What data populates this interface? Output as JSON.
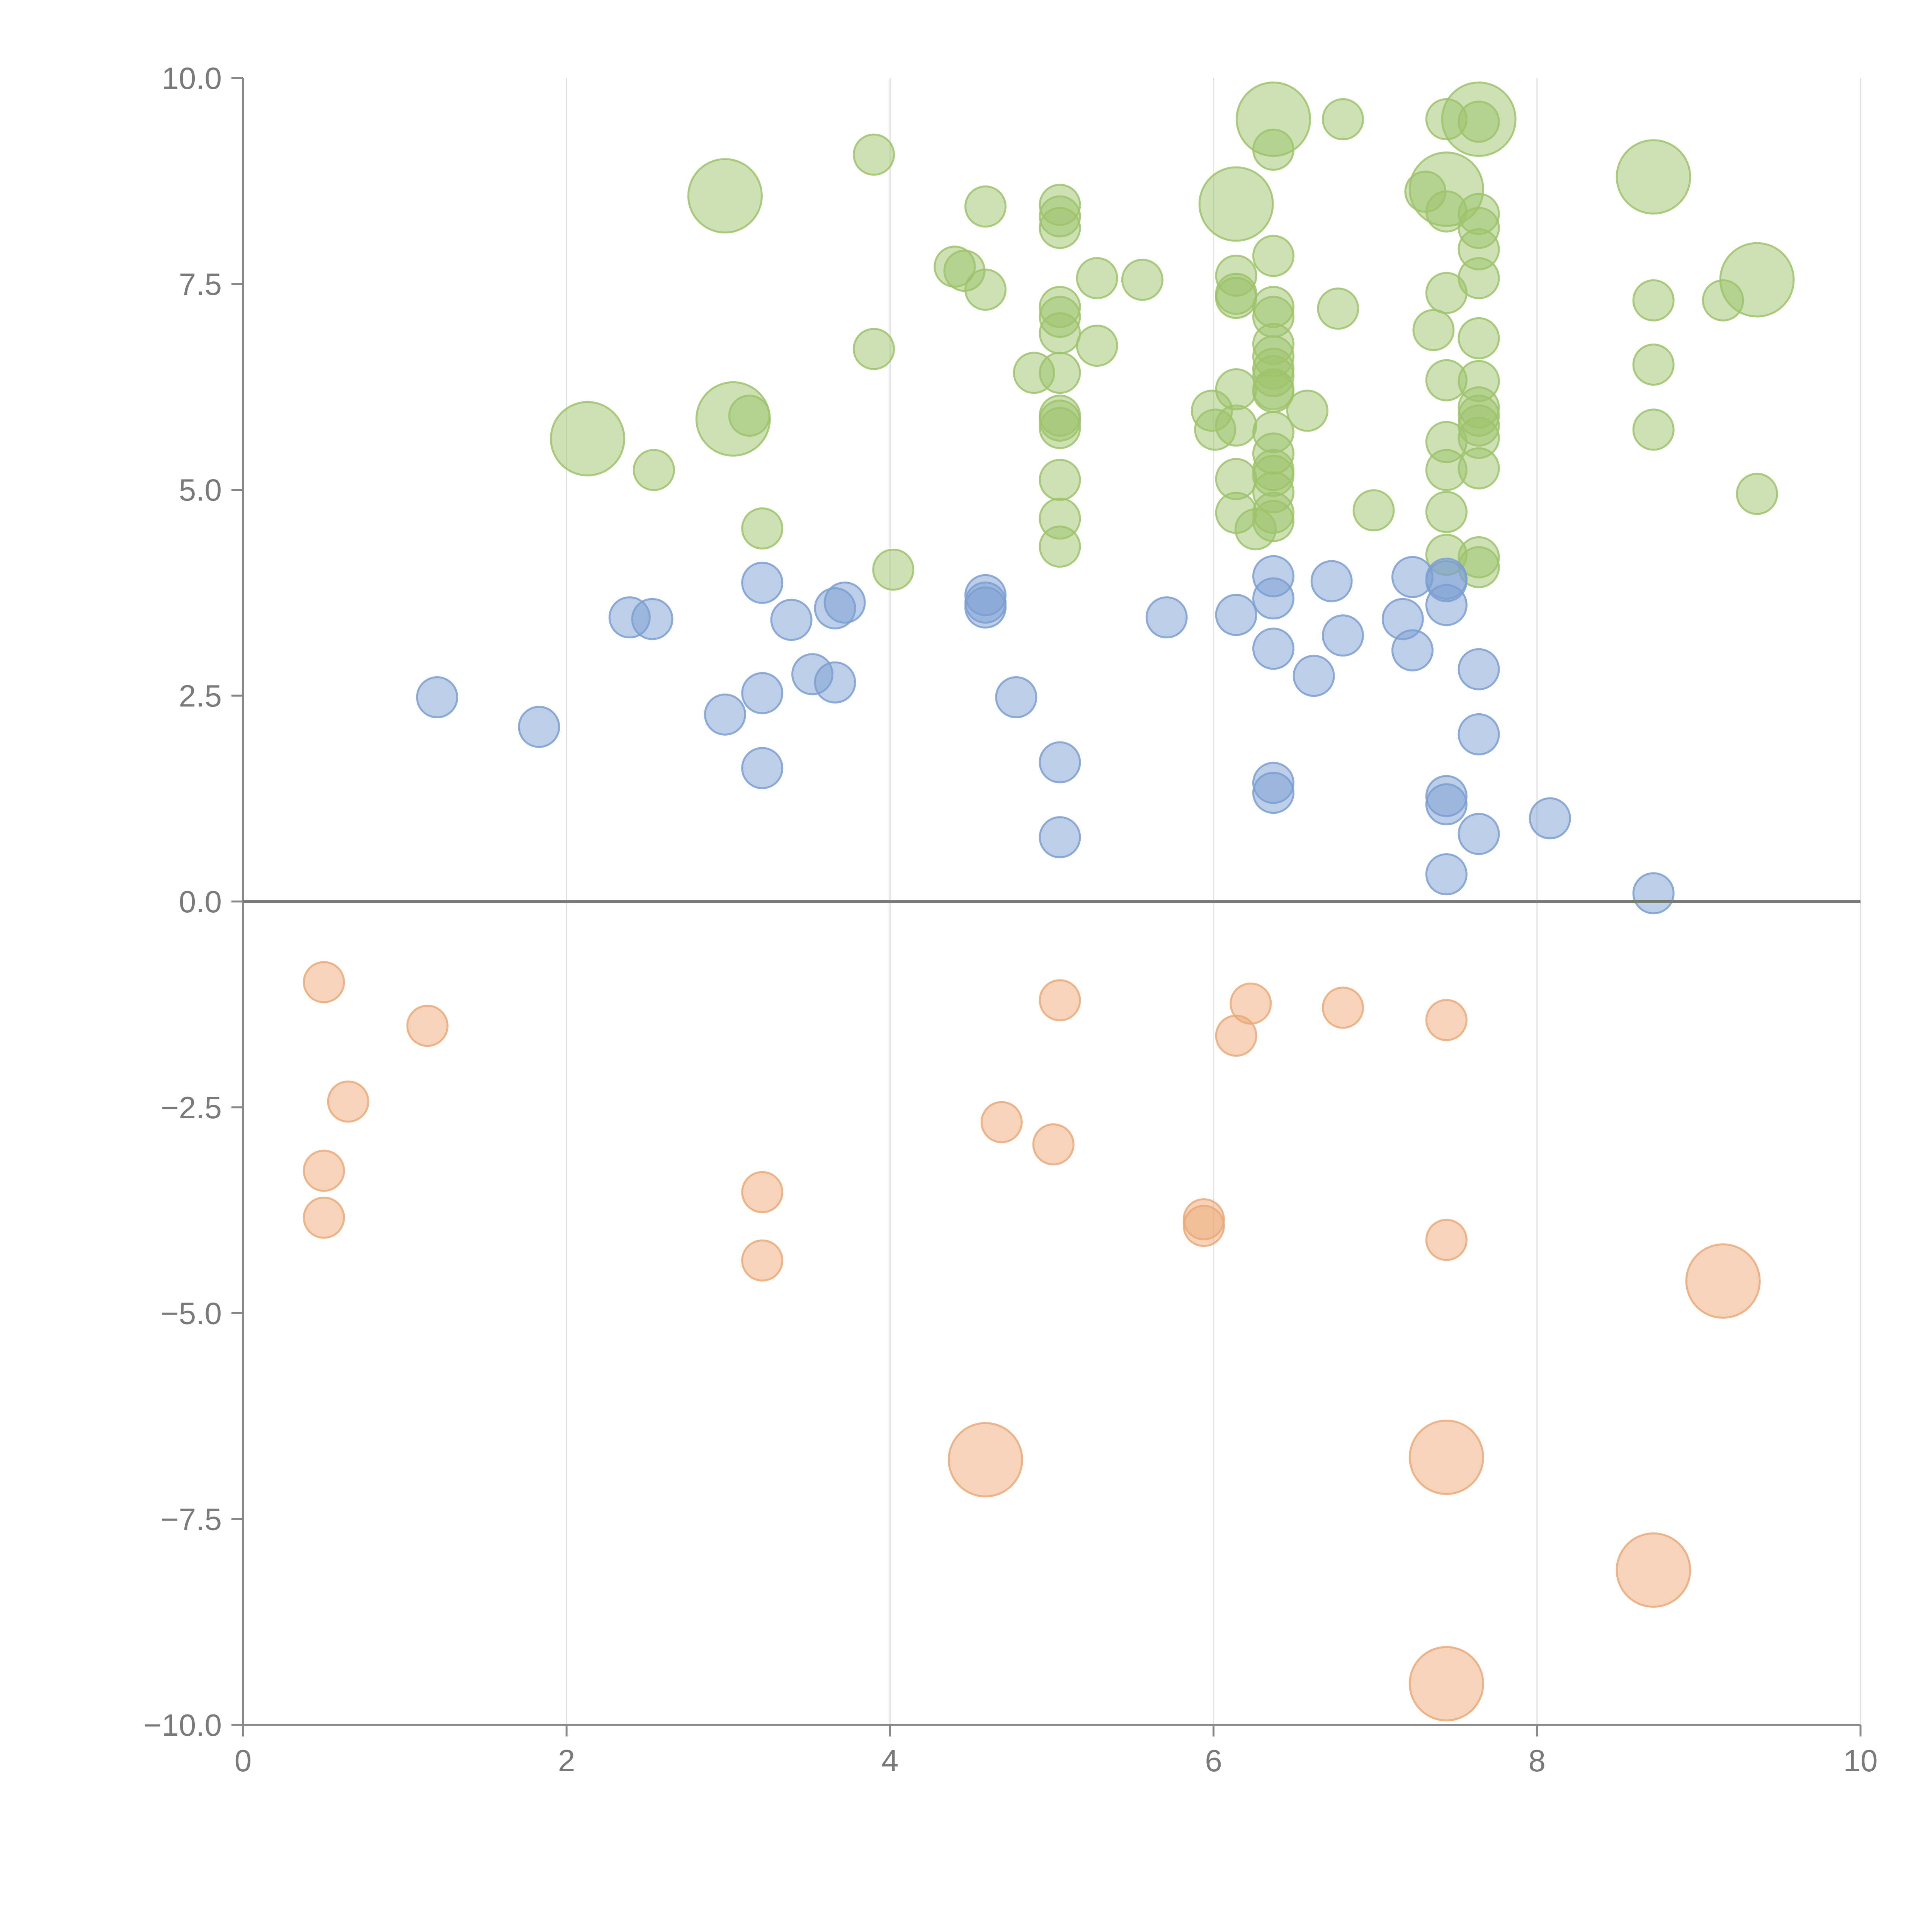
{
  "chart_data": {
    "type": "scatter",
    "title": "",
    "xlabel": "",
    "ylabel": "",
    "xlim": [
      0,
      10
    ],
    "ylim": [
      -10,
      10
    ],
    "grid": "vertical",
    "x_ticks": [
      0,
      2,
      4,
      6,
      8,
      10
    ],
    "x_tick_labels": [
      "0",
      "2",
      "4",
      "6",
      "8",
      "10"
    ],
    "y_ticks": [
      10,
      7.5,
      5,
      2.5,
      0,
      -2.5,
      -5,
      -7.5,
      -10
    ],
    "y_tick_labels": [
      "10.0",
      "7.5",
      "5.0",
      "2.5",
      "0.0",
      "−2.5",
      "−5.0",
      "−7.5",
      "−10.0"
    ],
    "series": [
      {
        "name": "green",
        "color": "#9dc36b",
        "points": [
          [
            2.98,
            8.57,
            2
          ],
          [
            2.13,
            5.62,
            2
          ],
          [
            3.03,
            5.86,
            2
          ],
          [
            6.14,
            8.47,
            2
          ],
          [
            6.37,
            9.5,
            2
          ],
          [
            7.64,
            9.5,
            2
          ],
          [
            7.44,
            8.65,
            2
          ],
          [
            8.72,
            8.8,
            2
          ],
          [
            9.36,
            7.55,
            2
          ],
          [
            3.9,
            9.07,
            1
          ],
          [
            3.13,
            5.9,
            1
          ],
          [
            2.54,
            5.24,
            1
          ],
          [
            3.21,
            4.53,
            1
          ],
          [
            3.9,
            6.71,
            1
          ],
          [
            4.02,
            4.03,
            1
          ],
          [
            4.4,
            7.71,
            1
          ],
          [
            4.46,
            7.66,
            1
          ],
          [
            4.59,
            8.44,
            1
          ],
          [
            4.59,
            7.43,
            1
          ],
          [
            4.89,
            6.42,
            1
          ],
          [
            5.05,
            8.46,
            1
          ],
          [
            5.05,
            8.32,
            1
          ],
          [
            5.05,
            8.18,
            1
          ],
          [
            5.05,
            7.22,
            1
          ],
          [
            5.05,
            7.1,
            1
          ],
          [
            5.05,
            6.9,
            1
          ],
          [
            5.05,
            6.42,
            1
          ],
          [
            5.05,
            5.9,
            1
          ],
          [
            5.05,
            5.84,
            1
          ],
          [
            5.05,
            5.75,
            1
          ],
          [
            5.05,
            5.12,
            1
          ],
          [
            5.05,
            4.65,
            1
          ],
          [
            5.05,
            4.31,
            1
          ],
          [
            5.28,
            7.57,
            1
          ],
          [
            5.28,
            6.75,
            1
          ],
          [
            5.56,
            7.55,
            1
          ],
          [
            5.99,
            5.96,
            1
          ],
          [
            6.01,
            5.73,
            1
          ],
          [
            6.14,
            7.6,
            1
          ],
          [
            6.14,
            7.38,
            1
          ],
          [
            6.14,
            7.33,
            1
          ],
          [
            6.14,
            6.22,
            1
          ],
          [
            6.14,
            5.78,
            1
          ],
          [
            6.14,
            5.13,
            1
          ],
          [
            6.14,
            4.72,
            1
          ],
          [
            6.26,
            4.52,
            1
          ],
          [
            6.37,
            9.13,
            1
          ],
          [
            6.37,
            7.84,
            1
          ],
          [
            6.37,
            7.22,
            1
          ],
          [
            6.37,
            7.1,
            1
          ],
          [
            6.37,
            6.77,
            1
          ],
          [
            6.37,
            6.62,
            1
          ],
          [
            6.37,
            6.47,
            1
          ],
          [
            6.37,
            6.38,
            1
          ],
          [
            6.37,
            6.22,
            1
          ],
          [
            6.37,
            6.19,
            1
          ],
          [
            6.37,
            5.7,
            1
          ],
          [
            6.37,
            5.44,
            1
          ],
          [
            6.37,
            5.24,
            1
          ],
          [
            6.37,
            5.17,
            1
          ],
          [
            6.37,
            4.97,
            1
          ],
          [
            6.37,
            4.72,
            1
          ],
          [
            6.37,
            4.62,
            1
          ],
          [
            6.58,
            5.96,
            1
          ],
          [
            6.8,
            9.5,
            1
          ],
          [
            6.77,
            7.2,
            1
          ],
          [
            6.99,
            4.75,
            1
          ],
          [
            7.31,
            8.62,
            1
          ],
          [
            7.36,
            6.94,
            1
          ],
          [
            7.44,
            9.5,
            1
          ],
          [
            7.44,
            8.38,
            1
          ],
          [
            7.44,
            7.39,
            1
          ],
          [
            7.44,
            6.33,
            1
          ],
          [
            7.44,
            5.58,
            1
          ],
          [
            7.44,
            5.24,
            1
          ],
          [
            7.44,
            4.73,
            1
          ],
          [
            7.44,
            4.21,
            1
          ],
          [
            7.64,
            9.47,
            1
          ],
          [
            7.64,
            8.35,
            1
          ],
          [
            7.64,
            8.18,
            1
          ],
          [
            7.64,
            7.92,
            1
          ],
          [
            7.64,
            7.57,
            1
          ],
          [
            7.64,
            6.84,
            1
          ],
          [
            7.64,
            6.32,
            1
          ],
          [
            7.64,
            6.0,
            1
          ],
          [
            7.64,
            5.9,
            1
          ],
          [
            7.64,
            5.78,
            1
          ],
          [
            7.64,
            5.63,
            1
          ],
          [
            7.64,
            5.26,
            1
          ],
          [
            7.64,
            4.18,
            1
          ],
          [
            7.64,
            4.06,
            1
          ],
          [
            8.72,
            7.3,
            1
          ],
          [
            8.72,
            6.52,
            1
          ],
          [
            8.72,
            5.73,
            1
          ],
          [
            9.15,
            7.3,
            1
          ],
          [
            9.36,
            4.95,
            1
          ]
        ]
      },
      {
        "name": "blue",
        "color": "#7b9fd1",
        "points": [
          [
            1.2,
            2.48,
            1
          ],
          [
            1.83,
            2.12,
            1
          ],
          [
            2.39,
            3.45,
            1
          ],
          [
            2.53,
            3.43,
            1
          ],
          [
            2.98,
            2.27,
            1
          ],
          [
            3.21,
            3.87,
            1
          ],
          [
            3.21,
            2.53,
            1
          ],
          [
            3.21,
            1.62,
            1
          ],
          [
            3.39,
            3.42,
            1
          ],
          [
            3.52,
            2.76,
            1
          ],
          [
            3.66,
            3.56,
            1
          ],
          [
            3.66,
            2.66,
            1
          ],
          [
            3.72,
            3.63,
            1
          ],
          [
            4.59,
            3.72,
            1
          ],
          [
            4.59,
            3.63,
            1
          ],
          [
            4.59,
            3.57,
            1
          ],
          [
            4.78,
            2.48,
            1
          ],
          [
            5.05,
            1.69,
            1
          ],
          [
            5.05,
            0.78,
            1
          ],
          [
            5.71,
            3.45,
            1
          ],
          [
            6.14,
            3.48,
            1
          ],
          [
            6.37,
            3.95,
            1
          ],
          [
            6.37,
            3.68,
            1
          ],
          [
            6.37,
            3.07,
            1
          ],
          [
            6.37,
            1.44,
            1
          ],
          [
            6.37,
            1.32,
            1
          ],
          [
            6.62,
            2.74,
            1
          ],
          [
            6.73,
            3.89,
            1
          ],
          [
            6.8,
            3.23,
            1
          ],
          [
            7.17,
            3.43,
            1
          ],
          [
            7.23,
            3.94,
            1
          ],
          [
            7.23,
            3.05,
            1
          ],
          [
            7.44,
            3.92,
            1
          ],
          [
            7.44,
            3.89,
            1
          ],
          [
            7.44,
            3.6,
            1
          ],
          [
            7.44,
            1.28,
            1
          ],
          [
            7.44,
            1.18,
            1
          ],
          [
            7.44,
            0.33,
            1
          ],
          [
            7.64,
            2.82,
            1
          ],
          [
            7.64,
            2.03,
            1
          ],
          [
            7.64,
            0.82,
            1
          ],
          [
            8.08,
            1.01,
            1
          ],
          [
            8.72,
            0.1,
            1
          ]
        ]
      },
      {
        "name": "orange",
        "color": "#eba978",
        "points": [
          [
            0.5,
            -0.98,
            1
          ],
          [
            1.14,
            -1.51,
            1
          ],
          [
            0.65,
            -2.43,
            1
          ],
          [
            0.5,
            -3.27,
            1
          ],
          [
            0.5,
            -3.84,
            1
          ],
          [
            3.21,
            -3.53,
            1
          ],
          [
            3.21,
            -4.36,
            1
          ],
          [
            4.69,
            -2.68,
            1
          ],
          [
            5.05,
            -1.2,
            1
          ],
          [
            5.01,
            -2.95,
            1
          ],
          [
            5.94,
            -3.86,
            1
          ],
          [
            5.94,
            -3.94,
            1
          ],
          [
            6.14,
            -1.63,
            1
          ],
          [
            6.23,
            -1.24,
            1
          ],
          [
            6.8,
            -1.29,
            1
          ],
          [
            7.44,
            -1.44,
            1
          ],
          [
            7.44,
            -4.11,
            1
          ],
          [
            9.15,
            -4.61,
            2
          ],
          [
            4.59,
            -6.78,
            2
          ],
          [
            7.44,
            -6.75,
            2
          ],
          [
            8.72,
            -8.12,
            2
          ],
          [
            7.44,
            -9.5,
            2
          ]
        ]
      }
    ],
    "size_legend": "small and large bubbles; size scale shown by relative radius only"
  }
}
